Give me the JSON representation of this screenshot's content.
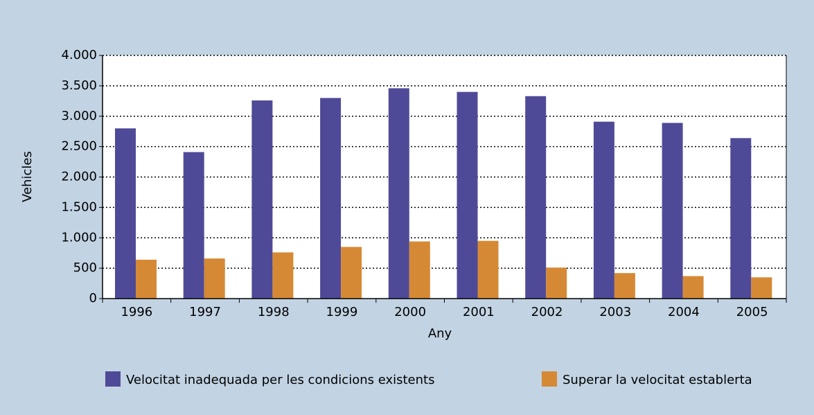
{
  "chart_data": {
    "type": "bar",
    "x_label": "Any",
    "y_label": "Vehicles",
    "categories": [
      "1996",
      "1997",
      "1998",
      "1999",
      "2000",
      "2001",
      "2002",
      "2003",
      "2004",
      "2005"
    ],
    "series": [
      {
        "name": "Velocitat inadequada per les condicions existents",
        "color": "#4f4a97",
        "values": [
          2800,
          2410,
          3260,
          3300,
          3460,
          3400,
          3330,
          2910,
          2890,
          2640
        ]
      },
      {
        "name": "Superar la velocitat establerta",
        "color": "#d68935",
        "values": [
          640,
          660,
          760,
          850,
          940,
          950,
          510,
          420,
          370,
          350
        ]
      }
    ],
    "ylim": [
      0,
      4000
    ],
    "yticks": [
      0,
      500,
      {
        "value": 1000,
        "label": "1.000"
      },
      {
        "value": 1500,
        "label": "1.500"
      },
      {
        "value": 2000,
        "label": "2.000"
      },
      {
        "value": 2500,
        "label": "2.500"
      },
      {
        "value": 3000,
        "label": "3.000"
      },
      {
        "value": 3500,
        "label": "3.500"
      },
      {
        "value": 4000,
        "label": "4.000"
      }
    ],
    "grid": true,
    "legend": "bottom"
  }
}
